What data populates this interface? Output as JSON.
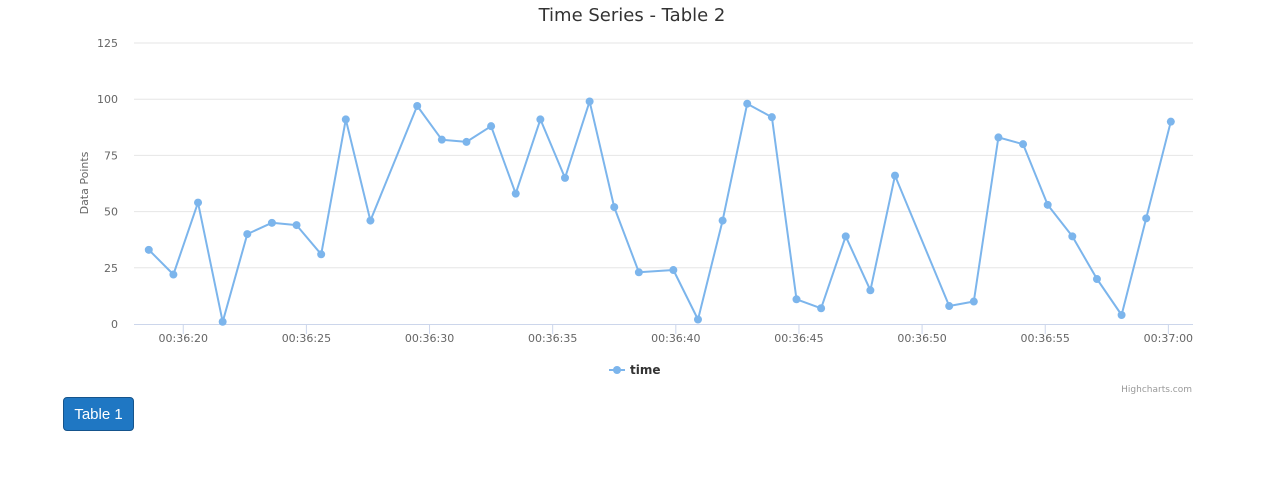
{
  "chart_data": {
    "type": "line",
    "title": "Time Series - Table 2",
    "ylabel": "Data Points",
    "xlabel": "",
    "ylim": [
      0,
      125
    ],
    "yticks": [
      0,
      25,
      50,
      75,
      100,
      125
    ],
    "xlim": [
      "00:36:18",
      "00:37:01"
    ],
    "xticks": [
      "00:36:20",
      "00:36:25",
      "00:36:30",
      "00:36:35",
      "00:36:40",
      "00:36:45",
      "00:36:50",
      "00:36:55",
      "00:37:00"
    ],
    "grid": true,
    "legend_position": "bottom-center",
    "series": [
      {
        "name": "time",
        "color": "#7cb5ec",
        "points": [
          {
            "x": "00:36:18.6",
            "y": 33
          },
          {
            "x": "00:36:19.6",
            "y": 22
          },
          {
            "x": "00:36:20.6",
            "y": 54
          },
          {
            "x": "00:36:21.6",
            "y": 1
          },
          {
            "x": "00:36:22.6",
            "y": 40
          },
          {
            "x": "00:36:23.6",
            "y": 45
          },
          {
            "x": "00:36:24.6",
            "y": 44
          },
          {
            "x": "00:36:25.6",
            "y": 31
          },
          {
            "x": "00:36:26.6",
            "y": 91
          },
          {
            "x": "00:36:27.6",
            "y": 46
          },
          {
            "x": "00:36:29.5",
            "y": 97
          },
          {
            "x": "00:36:30.5",
            "y": 82
          },
          {
            "x": "00:36:31.5",
            "y": 81
          },
          {
            "x": "00:36:32.5",
            "y": 88
          },
          {
            "x": "00:36:33.5",
            "y": 58
          },
          {
            "x": "00:36:34.5",
            "y": 91
          },
          {
            "x": "00:36:35.5",
            "y": 65
          },
          {
            "x": "00:36:36.5",
            "y": 99
          },
          {
            "x": "00:36:37.5",
            "y": 52
          },
          {
            "x": "00:36:38.5",
            "y": 23
          },
          {
            "x": "00:36:39.9",
            "y": 24
          },
          {
            "x": "00:36:40.9",
            "y": 2
          },
          {
            "x": "00:36:41.9",
            "y": 46
          },
          {
            "x": "00:36:42.9",
            "y": 98
          },
          {
            "x": "00:36:43.9",
            "y": 92
          },
          {
            "x": "00:36:44.9",
            "y": 11
          },
          {
            "x": "00:36:45.9",
            "y": 7
          },
          {
            "x": "00:36:46.9",
            "y": 39
          },
          {
            "x": "00:36:47.9",
            "y": 15
          },
          {
            "x": "00:36:48.9",
            "y": 66
          },
          {
            "x": "00:36:51.1",
            "y": 8
          },
          {
            "x": "00:36:52.1",
            "y": 10
          },
          {
            "x": "00:36:53.1",
            "y": 83
          },
          {
            "x": "00:36:54.1",
            "y": 80
          },
          {
            "x": "00:36:55.1",
            "y": 53
          },
          {
            "x": "00:36:56.1",
            "y": 39
          },
          {
            "x": "00:36:57.1",
            "y": 20
          },
          {
            "x": "00:36:58.1",
            "y": 4
          },
          {
            "x": "00:36:59.1",
            "y": 47
          },
          {
            "x": "00:37:00.1",
            "y": 90
          }
        ]
      }
    ],
    "credits": "Highcharts.com"
  },
  "button": {
    "label": "Table 1",
    "color": "#1f77c3"
  }
}
